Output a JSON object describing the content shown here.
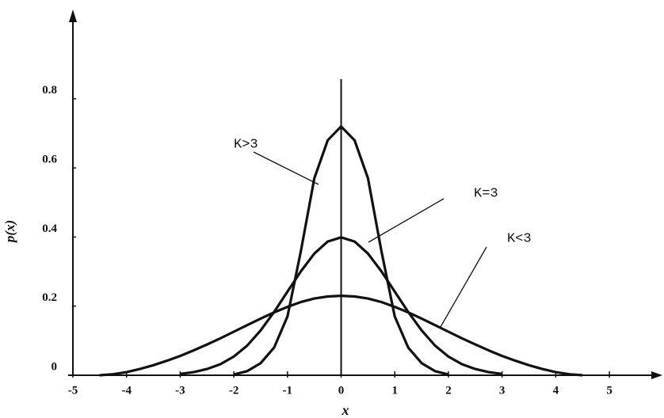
{
  "chart_data": {
    "type": "line",
    "x_label": "x",
    "y_label": "p(x)",
    "x": [
      -4.5,
      -4.25,
      -4,
      -3.75,
      -3.5,
      -3.25,
      -3,
      -2.75,
      -2.5,
      -2.25,
      -2,
      -1.75,
      -1.5,
      -1.25,
      -1,
      -0.75,
      -0.5,
      -0.25,
      0,
      0.25,
      0.5,
      0.75,
      1,
      1.25,
      1.5,
      1.75,
      2,
      2.25,
      2.5,
      2.75,
      3,
      3.25,
      3.5,
      3.75,
      4,
      4.25,
      4.5
    ],
    "series": [
      {
        "name": "K>3",
        "color": "#111111",
        "values": [
          null,
          null,
          null,
          null,
          null,
          null,
          null,
          null,
          null,
          null,
          0.002,
          0.012,
          0.035,
          0.08,
          0.17,
          0.36,
          0.57,
          0.68,
          0.72,
          0.68,
          0.57,
          0.36,
          0.17,
          0.08,
          0.035,
          0.012,
          0.002,
          null,
          null,
          null,
          null,
          null,
          null,
          null,
          null,
          null,
          null
        ]
      },
      {
        "name": "K=3",
        "color": "#111111",
        "values": [
          null,
          null,
          null,
          null,
          null,
          null,
          0.004,
          0.009,
          0.018,
          0.032,
          0.054,
          0.086,
          0.13,
          0.183,
          0.242,
          0.301,
          0.352,
          0.387,
          0.399,
          0.387,
          0.352,
          0.301,
          0.242,
          0.183,
          0.13,
          0.086,
          0.054,
          0.032,
          0.018,
          0.009,
          0.004,
          null,
          null,
          null,
          null,
          null,
          null
        ]
      },
      {
        "name": "K<3",
        "color": "#111111",
        "values": [
          0,
          0.003,
          0.009,
          0.018,
          0.029,
          0.042,
          0.056,
          0.072,
          0.089,
          0.107,
          0.126,
          0.145,
          0.164,
          0.182,
          0.198,
          0.212,
          0.222,
          0.228,
          0.23,
          0.228,
          0.222,
          0.212,
          0.198,
          0.182,
          0.164,
          0.145,
          0.126,
          0.107,
          0.089,
          0.072,
          0.056,
          0.042,
          0.029,
          0.018,
          0.009,
          0.003,
          0
        ]
      }
    ],
    "xlim": [
      -5,
      5.9
    ],
    "ylim": [
      0,
      1.04
    ],
    "xticks": [
      -5,
      -4,
      -3,
      -2,
      -1,
      0,
      1,
      2,
      3,
      4,
      5
    ],
    "yticks": [
      0,
      0.2,
      0.4,
      0.6,
      0.8
    ],
    "grid": false
  }
}
